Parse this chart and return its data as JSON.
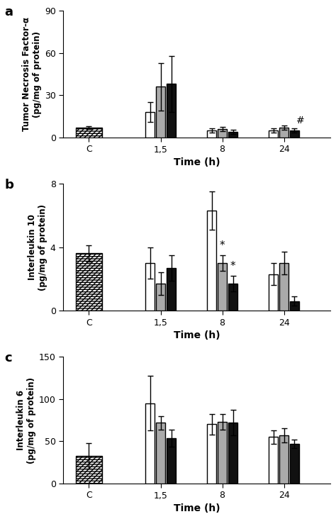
{
  "panel_a": {
    "ylabel": "Tumor Necrosis Factor-α\n(pg/mg of protein)",
    "ylim": [
      0,
      90
    ],
    "yticks": [
      0,
      30,
      60,
      90
    ],
    "white_vals": [
      0,
      18,
      5,
      5
    ],
    "white_err": [
      0,
      7,
      1.5,
      1.5
    ],
    "gray_vals": [
      7,
      36,
      6,
      7
    ],
    "gray_err": [
      1,
      17,
      1.5,
      1.5
    ],
    "black_vals": [
      0,
      38,
      4,
      5
    ],
    "black_err": [
      0,
      20,
      1.5,
      1.5
    ],
    "hash_pos": [
      3,
      "black"
    ]
  },
  "panel_b": {
    "ylabel": "Interleukin 10\n(pg/mg of protein)",
    "ylim": [
      0,
      8
    ],
    "yticks": [
      0,
      4,
      8
    ],
    "white_vals": [
      0,
      3.0,
      6.3,
      2.3
    ],
    "white_err": [
      0,
      1.0,
      1.2,
      0.7
    ],
    "gray_vals": [
      3.6,
      1.7,
      3.0,
      3.0
    ],
    "gray_err": [
      0.5,
      0.7,
      0.5,
      0.7
    ],
    "black_vals": [
      0,
      2.7,
      1.7,
      0.6
    ],
    "black_err": [
      0,
      0.8,
      0.5,
      0.3
    ],
    "stars": [
      2
    ]
  },
  "panel_c": {
    "ylabel": "Interleukin 6\n(pg/mg of protein)",
    "ylim": [
      0,
      150
    ],
    "yticks": [
      0,
      50,
      100,
      150
    ],
    "white_vals": [
      0,
      95,
      70,
      55
    ],
    "white_err": [
      0,
      32,
      12,
      8
    ],
    "gray_vals": [
      33,
      72,
      73,
      57
    ],
    "gray_err": [
      15,
      8,
      9,
      8
    ],
    "black_vals": [
      0,
      54,
      72,
      47
    ],
    "black_err": [
      0,
      10,
      15,
      5
    ]
  },
  "group_labels": [
    "C",
    "1,5",
    "8",
    "24"
  ],
  "xlabel": "Time (h)",
  "bar_width": 0.18,
  "group_positions": [
    0.5,
    1.9,
    3.1,
    4.3
  ],
  "xlim": [
    0.0,
    5.2
  ],
  "edgecolor": "#000000",
  "bg_color": "#ffffff",
  "color_white": "#ffffff",
  "color_gray": "#aaaaaa",
  "color_black": "#111111"
}
